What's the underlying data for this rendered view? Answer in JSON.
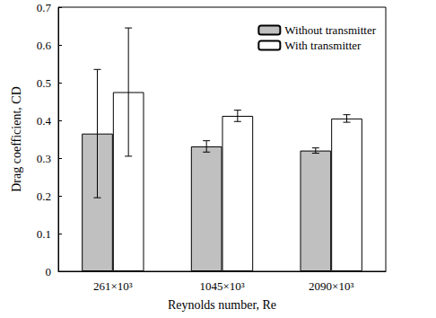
{
  "chart_data": {
    "type": "bar",
    "categories": [
      "261×10³",
      "1045×10³",
      "2090×10³"
    ],
    "series": [
      {
        "name": "Without transmitter",
        "color": "#c0c0c0",
        "values": [
          0.365,
          0.331,
          0.32
        ],
        "errors": [
          0.17,
          0.015,
          0.007
        ]
      },
      {
        "name": "With transmitter",
        "color": "#ffffff",
        "values": [
          0.475,
          0.412,
          0.405
        ],
        "errors": [
          0.17,
          0.015,
          0.01
        ]
      }
    ],
    "x_label": "Reynolds number, Re",
    "y_label": "Drag coefficient, CD",
    "ylim": [
      0,
      0.7
    ],
    "yticks": [
      0,
      0.1,
      0.2,
      0.3,
      0.4,
      0.5,
      0.6,
      0.7
    ],
    "legend": "upper right",
    "grid": false
  }
}
